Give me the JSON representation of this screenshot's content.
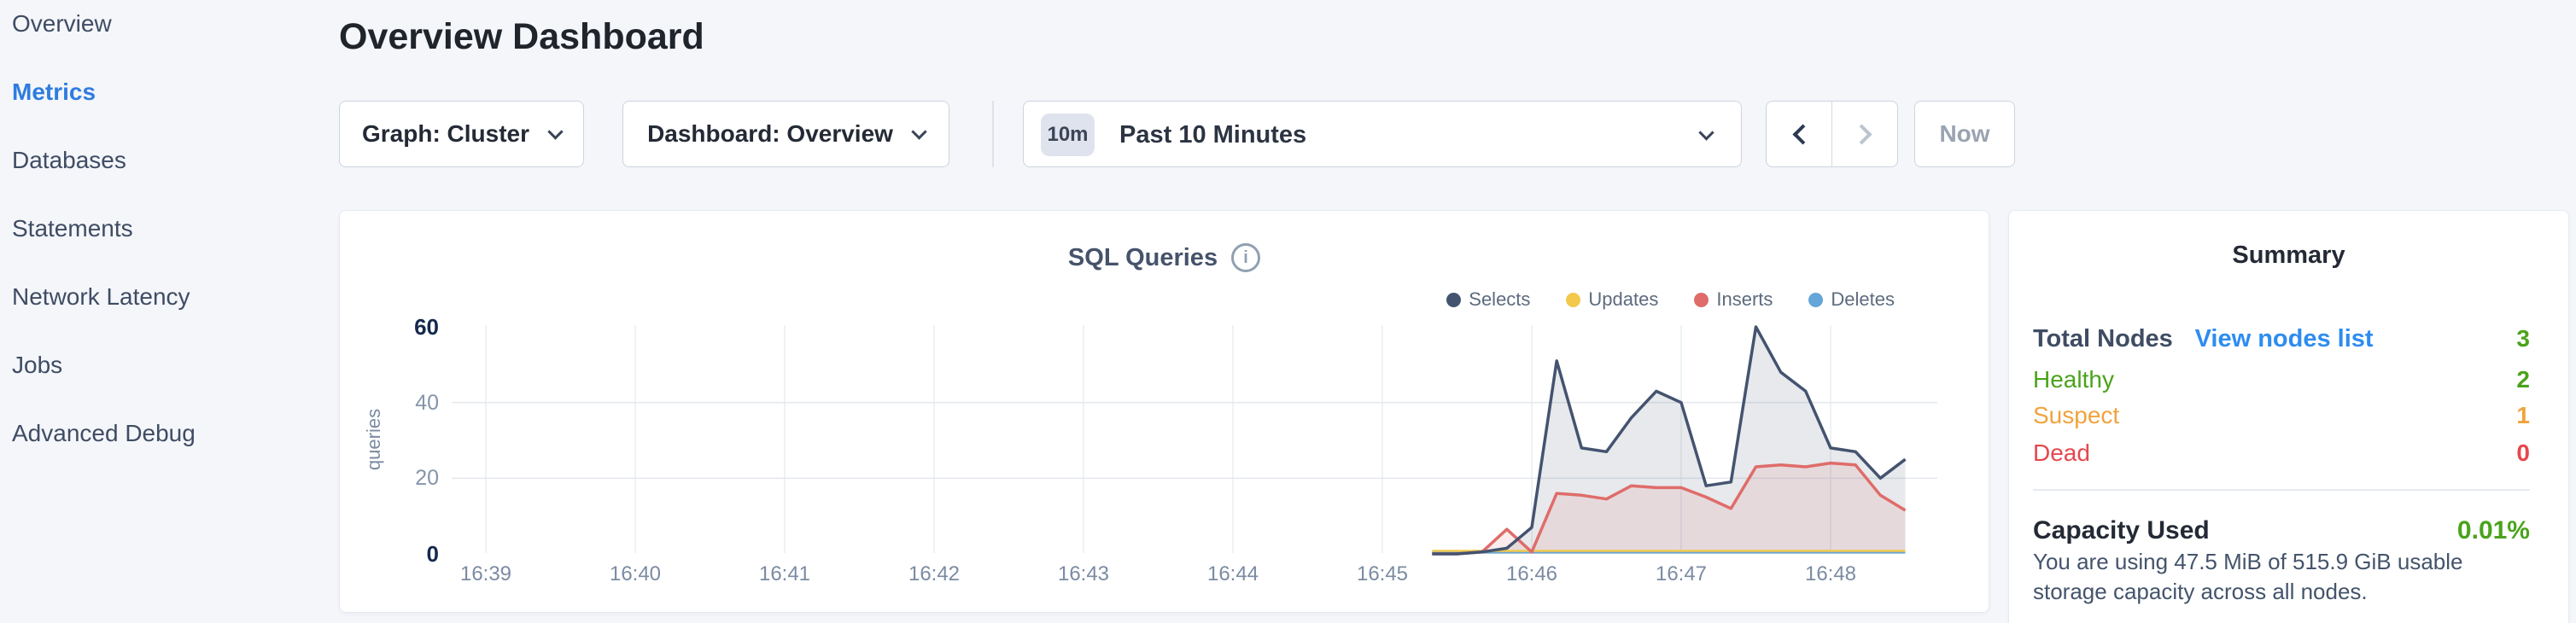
{
  "colors": {
    "accent_blue": "#2f7ce0",
    "link_blue": "#2e8cf0",
    "green": "#4aa31c",
    "orange": "#f0a33c",
    "red": "#e5484d"
  },
  "sidebar": {
    "active": "Metrics",
    "items": [
      {
        "label": "Overview"
      },
      {
        "label": "Metrics"
      },
      {
        "label": "Databases"
      },
      {
        "label": "Statements"
      },
      {
        "label": "Network Latency"
      },
      {
        "label": "Jobs"
      },
      {
        "label": "Advanced Debug"
      }
    ]
  },
  "header": {
    "title": "Overview Dashboard"
  },
  "toolbar": {
    "graph_select": "Graph: Cluster",
    "dashboard_select": "Dashboard: Overview",
    "time_window_badge": "10m",
    "time_window_label": "Past 10 Minutes",
    "now_button": "Now"
  },
  "chart": {
    "title": "SQL Queries",
    "info_icon_glyph": "i",
    "ylabel": "queries"
  },
  "chart_data": {
    "type": "area",
    "title": "SQL Queries",
    "ylabel": "queries",
    "x_ticks": [
      "16:39",
      "16:40",
      "16:41",
      "16:42",
      "16:43",
      "16:44",
      "16:45",
      "16:46",
      "16:47",
      "16:48"
    ],
    "x_tick_interval_seconds": 60,
    "series_start_offset_seconds": 380,
    "series_interval_seconds": 10,
    "ylim": [
      0,
      60
    ],
    "y_ticks": [
      0,
      20,
      40,
      60
    ],
    "y_gridlines": [
      20,
      40
    ],
    "grid": true,
    "legend_position": "top-right",
    "series": [
      {
        "name": "Selects",
        "color": "#44536f",
        "fill": "rgba(68,83,111,0.13)",
        "values": [
          0,
          0,
          0.5,
          1.5,
          7,
          51,
          28,
          27,
          36,
          43,
          40,
          18,
          19,
          60,
          48,
          43,
          28,
          27,
          20,
          25
        ]
      },
      {
        "name": "Updates",
        "color": "#f2c94c",
        "fill": "none",
        "values": [
          0.8,
          0.8,
          0.8,
          0.8,
          0.8,
          0.8,
          0.8,
          0.8,
          0.8,
          0.8,
          0.8,
          0.8,
          0.8,
          0.8,
          0.8,
          0.8,
          0.8,
          0.8,
          0.8,
          0.8
        ]
      },
      {
        "name": "Inserts",
        "color": "#df6c69",
        "fill": "rgba(223,108,105,0.12)",
        "values": [
          0,
          0,
          0.5,
          6.5,
          0.5,
          16,
          15.5,
          14.5,
          18,
          17.5,
          17.5,
          15,
          12,
          23,
          23.5,
          23,
          24,
          23.5,
          15.5,
          11.5
        ]
      },
      {
        "name": "Deletes",
        "color": "#64a6d9",
        "fill": "none",
        "values": [
          0.4,
          0.4,
          0.4,
          0.4,
          0.4,
          0.4,
          0.4,
          0.4,
          0.4,
          0.4,
          0.4,
          0.4,
          0.4,
          0.4,
          0.4,
          0.4,
          0.4,
          0.4,
          0.4,
          0.4
        ]
      }
    ]
  },
  "summary": {
    "title": "Summary",
    "total_nodes_label": "Total Nodes",
    "view_nodes_link": "View nodes list",
    "total_nodes_value": "3",
    "rows": [
      {
        "label": "Healthy",
        "value": "2",
        "color": "#4aa31c"
      },
      {
        "label": "Suspect",
        "value": "1",
        "color": "#f0a33c"
      },
      {
        "label": "Dead",
        "value": "0",
        "color": "#e5484d"
      }
    ],
    "capacity_label": "Capacity Used",
    "capacity_value": "0.01%",
    "capacity_description": "You are using 47.5 MiB of 515.9 GiB usable storage capacity across all nodes."
  }
}
